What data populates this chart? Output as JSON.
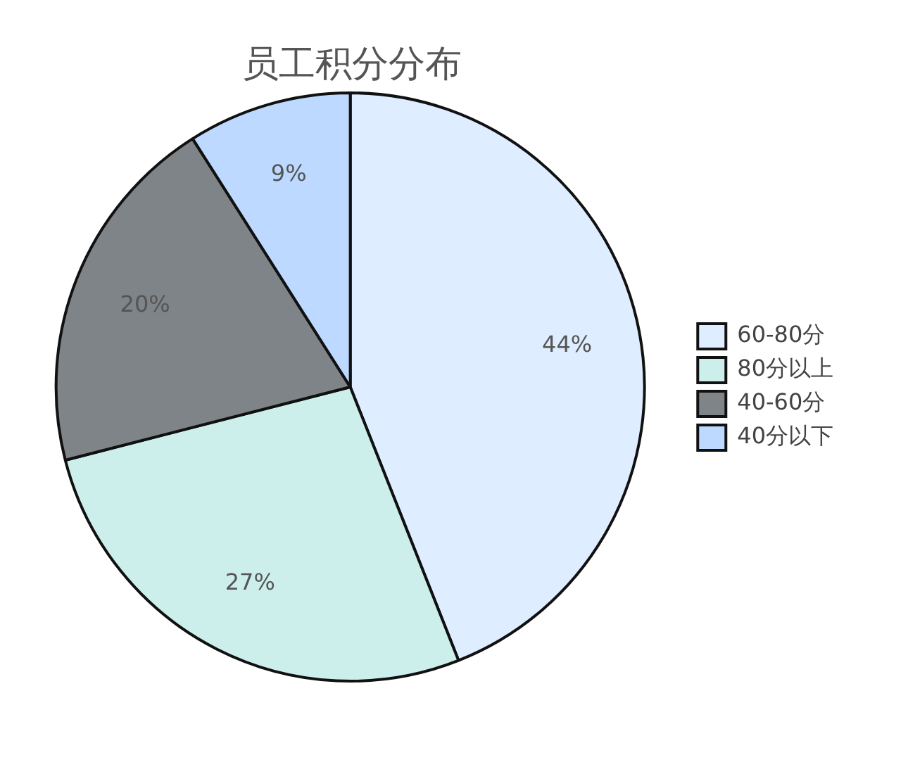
{
  "chart_data": {
    "type": "pie",
    "title": "员工积分分布",
    "categories": [
      "60-80分",
      "80分以上",
      "40-60分",
      "40分以下"
    ],
    "values": [
      44,
      27,
      20,
      9
    ],
    "colors": [
      "#deedff",
      "#cdefec",
      "#7f8488",
      "#bdd9ff"
    ],
    "value_labels": [
      "44%",
      "27%",
      "20%",
      "9%"
    ],
    "legend": "right"
  }
}
